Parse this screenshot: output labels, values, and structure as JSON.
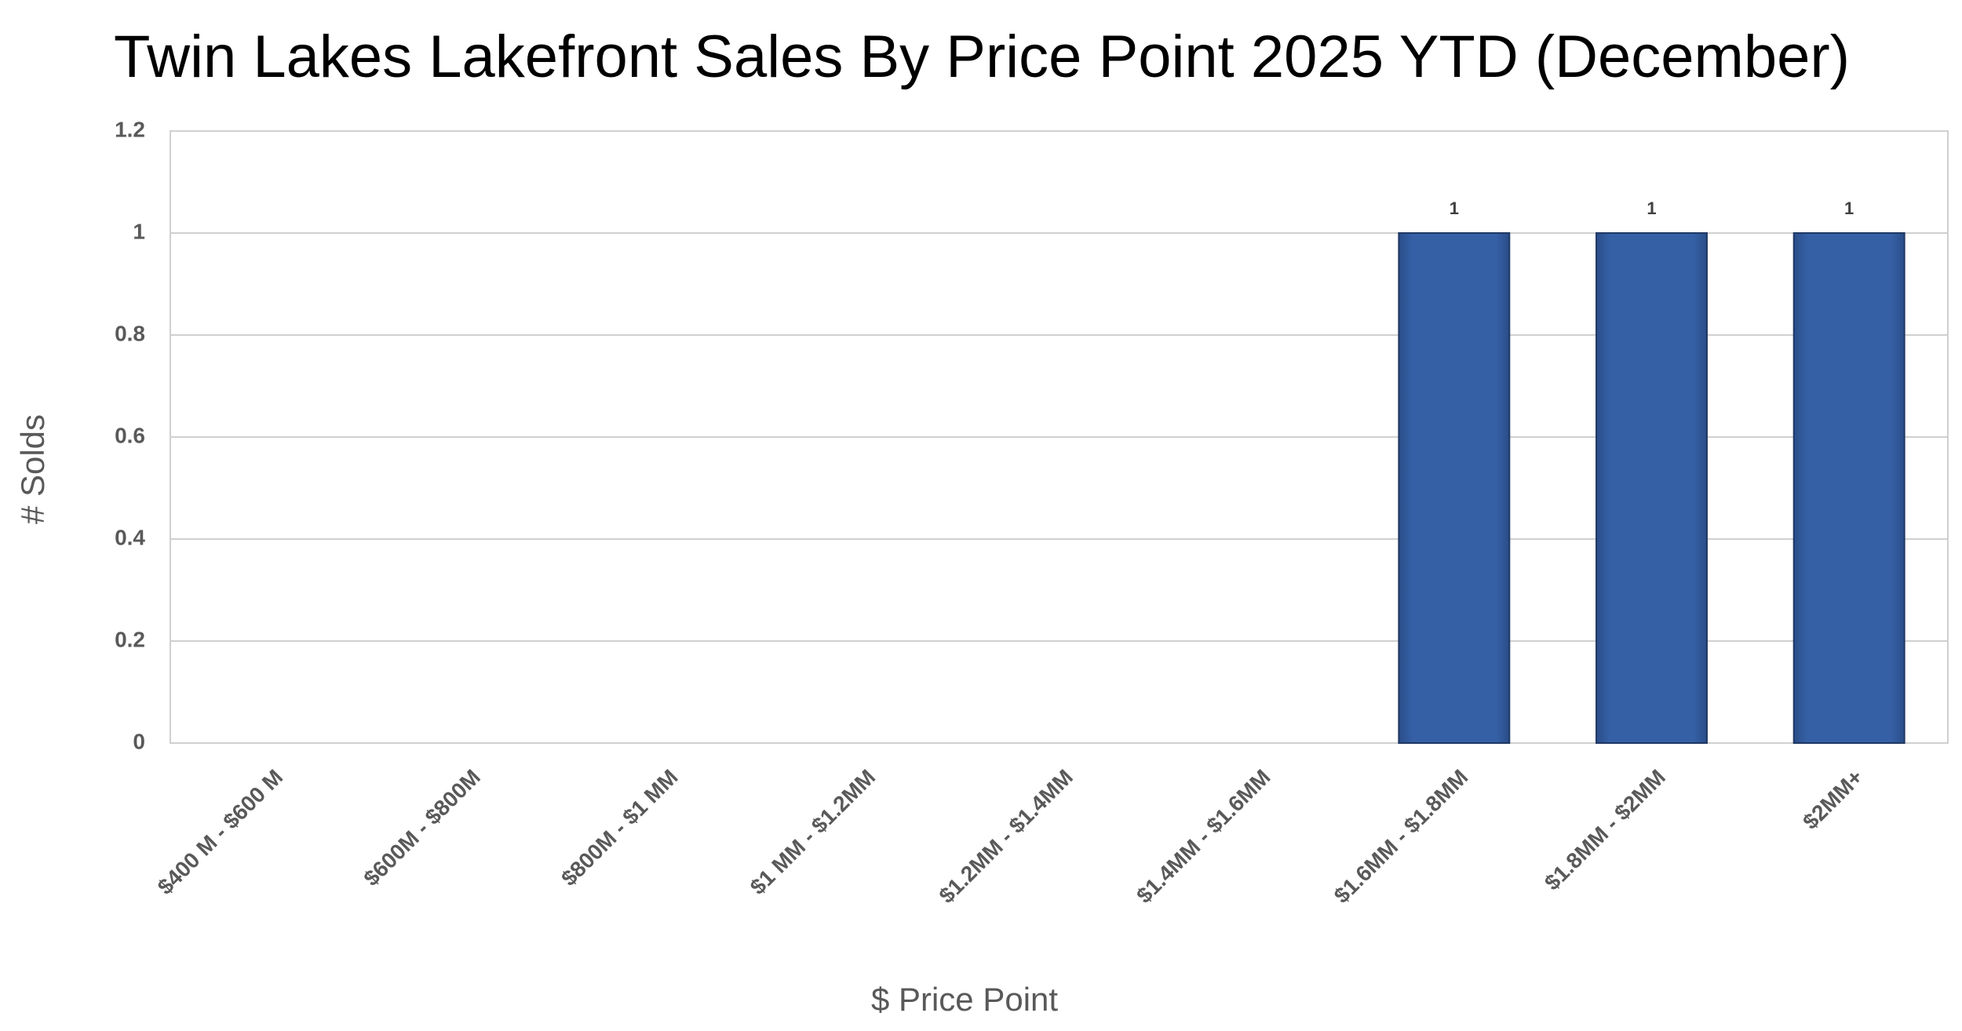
{
  "chart_data": {
    "type": "bar",
    "title": "Twin Lakes Lakefront Sales By Price Point 2025 YTD (December)",
    "x_label": "$ Price Point",
    "y_label": "# Solds",
    "categories": [
      "$400 M - $600 M",
      "$600M - $800M",
      "$800M - $1 MM",
      "$1 MM - $1.2MM",
      "$1.2MM - $1.4MM",
      "$1.4MM - $1.6MM",
      "$1.6MM - $1.8MM",
      "$1.8MM - $2MM",
      "$2MM+"
    ],
    "values": [
      0,
      0,
      0,
      0,
      0,
      0,
      1,
      1,
      1
    ],
    "value_labels": [
      null,
      null,
      null,
      null,
      null,
      null,
      "1",
      "1",
      "1"
    ],
    "color": "#335c9f",
    "ylim": [
      0,
      1.2
    ],
    "yticks": [
      0,
      0.2,
      0.4,
      0.6,
      0.8,
      1,
      1.2
    ],
    "grid": true
  }
}
